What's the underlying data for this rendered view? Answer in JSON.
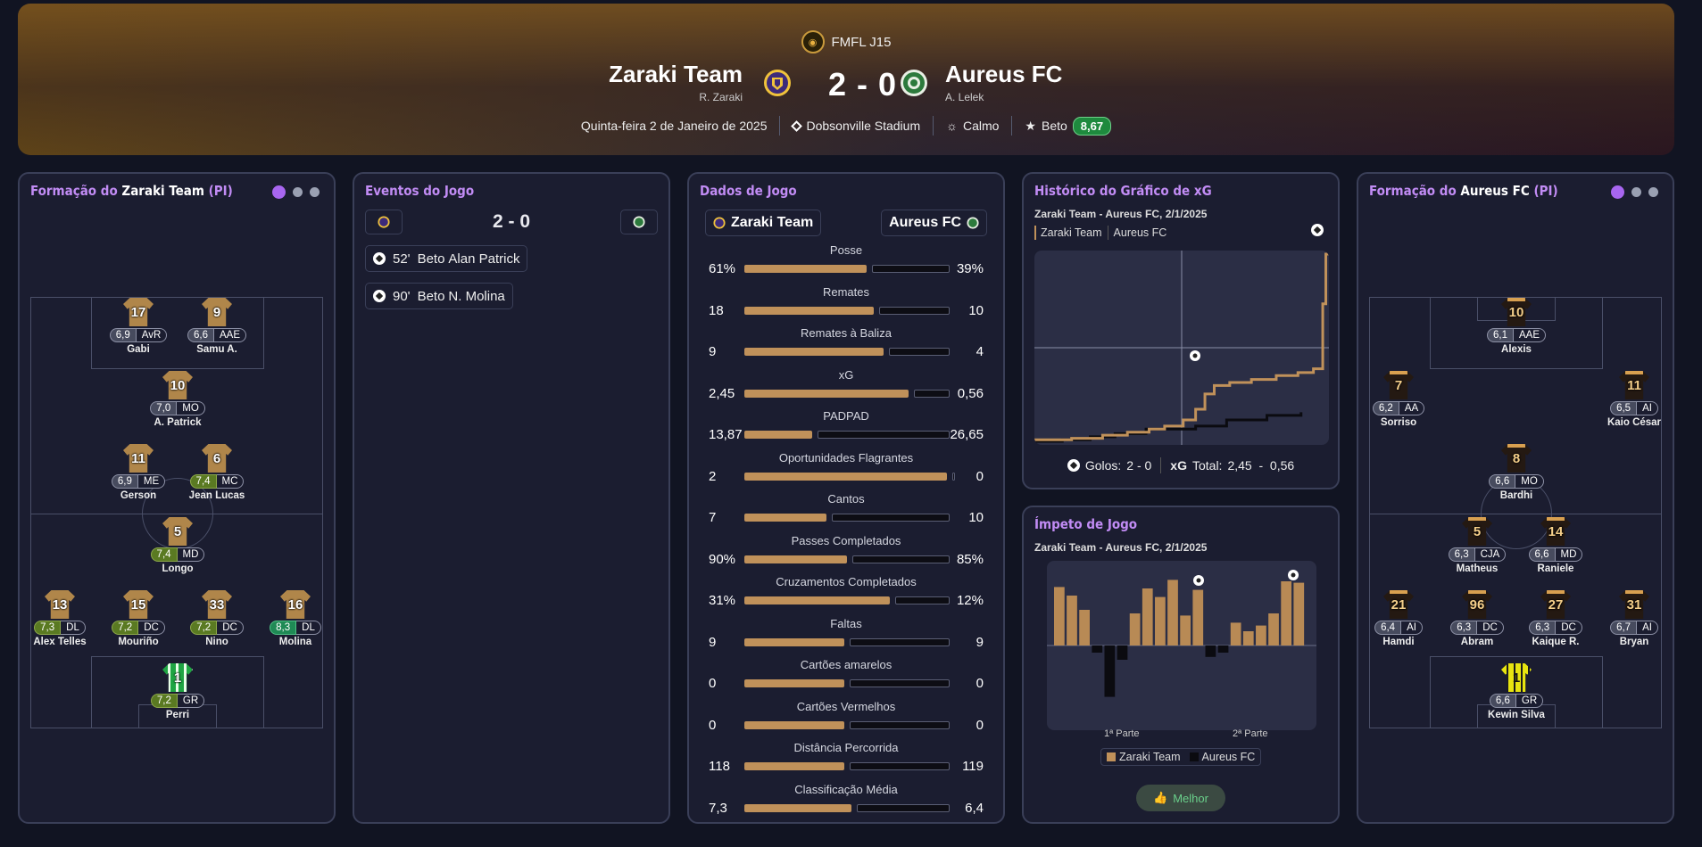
{
  "header": {
    "league": "FMFL J15",
    "home": {
      "name": "Zaraki Team",
      "manager": "R. Zaraki"
    },
    "away": {
      "name": "Aureus FC",
      "manager": "A. Lelek"
    },
    "score": "2 - 0",
    "date": "Quinta-feira 2 de Janeiro de 2025",
    "stadium": "Dobsonville Stadium",
    "weather": "Calmo",
    "motm_name": "Beto",
    "motm_rating": "8,67"
  },
  "home_lineup": {
    "title_prefix": "Formação do",
    "team": "Zaraki Team",
    "title_suffix": "(PI)",
    "players": [
      {
        "num": "17",
        "rating": "6,9",
        "pos": "AvR",
        "name": "Gabi"
      },
      {
        "num": "9",
        "rating": "6,6",
        "pos": "AAE",
        "name": "Samu A."
      },
      {
        "num": "10",
        "rating": "7,0",
        "pos": "MO",
        "name": "A. Patrick"
      },
      {
        "num": "11",
        "rating": "6,9",
        "pos": "ME",
        "name": "Gerson"
      },
      {
        "num": "6",
        "rating": "7,4",
        "pos": "MC",
        "name": "Jean Lucas"
      },
      {
        "num": "5",
        "rating": "7,4",
        "pos": "MD",
        "name": "Longo"
      },
      {
        "num": "13",
        "rating": "7,3",
        "pos": "DL",
        "name": "Alex Telles"
      },
      {
        "num": "15",
        "rating": "7,2",
        "pos": "DC",
        "name": "Mouriño"
      },
      {
        "num": "33",
        "rating": "7,2",
        "pos": "DC",
        "name": "Nino"
      },
      {
        "num": "16",
        "rating": "8,3",
        "pos": "DL",
        "name": "Molina"
      },
      {
        "num": "1",
        "rating": "7,2",
        "pos": "GR",
        "name": "Perri"
      }
    ]
  },
  "events": {
    "title": "Eventos do Jogo",
    "score": "2 - 0",
    "items": [
      {
        "minute": "52'",
        "scorer": "Beto",
        "assist": "Alan Patrick"
      },
      {
        "minute": "90'",
        "scorer": "Beto",
        "assist": "N. Molina"
      }
    ]
  },
  "stats": {
    "title": "Dados de Jogo",
    "home": "Zaraki Team",
    "away": "Aureus FC",
    "rows": [
      {
        "label": "Posse",
        "home": "61%",
        "away": "39%",
        "hv": 61,
        "av": 39
      },
      {
        "label": "Remates",
        "home": "18",
        "away": "10",
        "hv": 18,
        "av": 10
      },
      {
        "label": "Remates à Baliza",
        "home": "9",
        "away": "4",
        "hv": 9,
        "av": 4
      },
      {
        "label": "xG",
        "home": "2,45",
        "away": "0,56",
        "hv": 2.45,
        "av": 0.56
      },
      {
        "label": "PADPAD",
        "home": "13,87",
        "away": "26,65",
        "hv": 13.87,
        "av": 26.65
      },
      {
        "label": "Oportunidades Flagrantes",
        "home": "2",
        "away": "0",
        "hv": 2,
        "av": 0
      },
      {
        "label": "Cantos",
        "home": "7",
        "away": "10",
        "hv": 7,
        "av": 10
      },
      {
        "label": "Passes Completados",
        "home": "90%",
        "away": "85%",
        "hv": 90,
        "av": 85
      },
      {
        "label": "Cruzamentos Completados",
        "home": "31%",
        "away": "12%",
        "hv": 31,
        "av": 12
      },
      {
        "label": "Faltas",
        "home": "9",
        "away": "9",
        "hv": 9,
        "av": 9
      },
      {
        "label": "Cartões amarelos",
        "home": "0",
        "away": "0",
        "hv": 0,
        "av": 0
      },
      {
        "label": "Cartões Vermelhos",
        "home": "0",
        "away": "0",
        "hv": 0,
        "av": 0
      },
      {
        "label": "Distância Percorrida",
        "home": "118",
        "away": "119",
        "hv": 118,
        "av": 119
      },
      {
        "label": "Classificação Média",
        "home": "7,3",
        "away": "6,4",
        "hv": 7.3,
        "av": 6.4
      }
    ]
  },
  "xg_history": {
    "title": "Histórico do Gráfico de xG",
    "subtitle": "Zaraki Team - Aureus FC, 2/1/2025",
    "legend_home": "Zaraki Team",
    "legend_away": "Aureus FC",
    "goals_label": "Golos:",
    "goals_value": "2 - 0",
    "xg_label": "xG",
    "xg_total_label": "Total:",
    "xg_total_value": "2,45  -  0,56",
    "colors": {
      "home": "#c0915a",
      "away": "#0b0b10"
    },
    "home_steps": [
      [
        0,
        0.02
      ],
      [
        12,
        0.04
      ],
      [
        22,
        0.08
      ],
      [
        30,
        0.12
      ],
      [
        37,
        0.16
      ],
      [
        42,
        0.2
      ],
      [
        48,
        0.28
      ],
      [
        52,
        0.42
      ],
      [
        55,
        0.62
      ],
      [
        58,
        0.73
      ],
      [
        63,
        0.77
      ],
      [
        70,
        0.81
      ],
      [
        78,
        0.86
      ],
      [
        85,
        0.9
      ],
      [
        90,
        0.95
      ],
      [
        93,
        1.8
      ],
      [
        94,
        2.45
      ]
    ],
    "away_steps": [
      [
        0,
        0.0
      ],
      [
        9,
        0.02
      ],
      [
        18,
        0.06
      ],
      [
        26,
        0.1
      ],
      [
        36,
        0.16
      ],
      [
        52,
        0.2
      ],
      [
        62,
        0.28
      ],
      [
        75,
        0.34
      ],
      [
        86,
        0.38
      ]
    ]
  },
  "momentum": {
    "title": "Ímpeto de Jogo",
    "subtitle": "Zaraki Team - Aureus FC, 2/1/2025",
    "first_half": "1ª Parte",
    "second_half": "2ª Parte",
    "legend_home": "Zaraki Team",
    "legend_away": "Aureus FC",
    "best_button": "Melhor",
    "values": [
      0.82,
      0.7,
      0.5,
      -0.1,
      -0.72,
      -0.2,
      0.45,
      0.8,
      0.68,
      0.92,
      0.42,
      0.78,
      -0.16,
      -0.1,
      0.32,
      0.2,
      0.28,
      0.45,
      0.9,
      0.88
    ]
  },
  "away_lineup": {
    "title_prefix": "Formação do",
    "team": "Aureus FC",
    "title_suffix": "(PI)",
    "players": [
      {
        "num": "10",
        "rating": "6,1",
        "pos": "AAE",
        "name": "Alexis"
      },
      {
        "num": "7",
        "rating": "6,2",
        "pos": "AA",
        "name": "Sorriso"
      },
      {
        "num": "11",
        "rating": "6,5",
        "pos": "AI",
        "name": "Kaio César"
      },
      {
        "num": "8",
        "rating": "6,6",
        "pos": "MO",
        "name": "Bardhi"
      },
      {
        "num": "5",
        "rating": "6,3",
        "pos": "CJA",
        "name": "Matheus"
      },
      {
        "num": "14",
        "rating": "6,6",
        "pos": "MD",
        "name": "Raniele"
      },
      {
        "num": "21",
        "rating": "6,4",
        "pos": "AI",
        "name": "Hamdi"
      },
      {
        "num": "96",
        "rating": "6,3",
        "pos": "DC",
        "name": "Abram"
      },
      {
        "num": "27",
        "rating": "6,3",
        "pos": "DC",
        "name": "Kaique R."
      },
      {
        "num": "31",
        "rating": "6,7",
        "pos": "AI",
        "name": "Bryan"
      },
      {
        "num": "1",
        "rating": "6,6",
        "pos": "GR",
        "name": "Kewin Silva"
      }
    ]
  }
}
